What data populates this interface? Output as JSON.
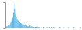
{
  "chart_data": {
    "type": "bar",
    "categories": [
      null,
      null,
      null,
      null,
      null,
      null,
      null,
      null,
      null,
      null,
      null,
      null,
      null,
      null,
      null,
      null,
      null,
      null,
      null,
      null,
      null,
      null,
      null,
      null,
      null,
      null,
      null,
      null,
      null,
      null,
      null,
      null,
      null,
      null,
      null,
      null,
      null,
      null,
      null,
      null,
      null,
      null,
      null,
      null,
      null,
      null,
      null,
      null,
      null,
      null,
      null,
      null,
      null,
      null,
      null,
      null,
      null,
      null,
      null,
      null,
      null,
      null,
      null,
      null,
      null,
      null,
      null,
      null,
      null,
      null,
      null,
      null,
      null,
      null,
      null,
      null,
      null,
      null,
      null,
      null,
      null,
      null,
      null,
      null,
      null,
      null,
      null,
      null,
      null,
      null,
      null,
      null,
      null,
      null,
      null,
      null,
      null,
      null,
      null,
      null
    ],
    "values": [
      1,
      2,
      2,
      3,
      3,
      4,
      5,
      7,
      9,
      12,
      18,
      28,
      22,
      16,
      13,
      10,
      8,
      9,
      7,
      6,
      5,
      5,
      4,
      4,
      3,
      3,
      4,
      3,
      2,
      2,
      2,
      2,
      3,
      2,
      2,
      2,
      1,
      1,
      1,
      1,
      0,
      1,
      2,
      1,
      1,
      1,
      0,
      0,
      1,
      0,
      1,
      1,
      0,
      0,
      0,
      1,
      0,
      0,
      1,
      0,
      0,
      1,
      0,
      0,
      1,
      0,
      0,
      0,
      1,
      0,
      0,
      0,
      1,
      0,
      0,
      0,
      0,
      1,
      0,
      0,
      0,
      0,
      0,
      1,
      0,
      0,
      0,
      0,
      0,
      0,
      1,
      0,
      0,
      0,
      0,
      0,
      0,
      0,
      0,
      1
    ],
    "color": "#5bb8e8",
    "ylim": [
      0,
      30
    ],
    "tick_labels": false,
    "grid": false
  }
}
